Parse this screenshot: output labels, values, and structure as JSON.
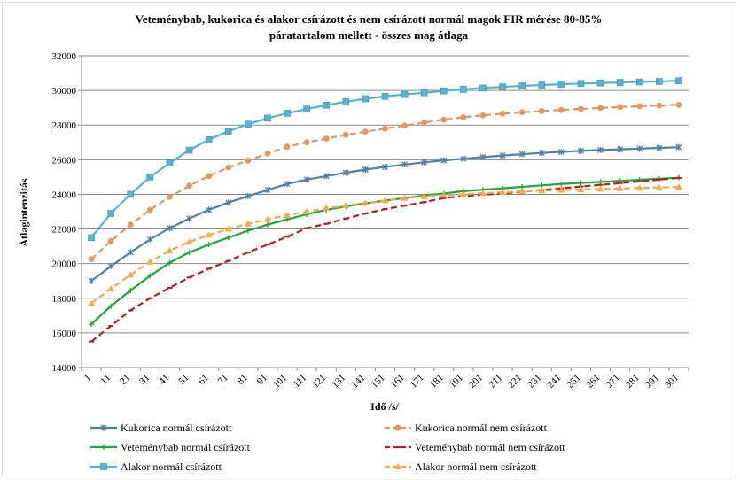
{
  "chart_data": {
    "type": "line",
    "title_line1": "Veteménybab,  kukorica és alakor csírázott és nem csírázott normál magok FIR mérése 80-85%",
    "title_line2": "páratartalom mellett - összes mag átlaga",
    "xlabel": "Idő /s/",
    "ylabel": "Átlagintenzitás",
    "ylim": [
      14000,
      32000
    ],
    "yticks": [
      14000,
      16000,
      18000,
      20000,
      22000,
      24000,
      26000,
      28000,
      30000,
      32000
    ],
    "x": [
      1,
      11,
      21,
      31,
      41,
      51,
      61,
      71,
      81,
      91,
      101,
      111,
      121,
      131,
      141,
      151,
      161,
      171,
      181,
      191,
      201,
      211,
      221,
      231,
      241,
      251,
      261,
      271,
      281,
      291,
      301
    ],
    "grid": "horizontal",
    "legend_position": "bottom",
    "series": [
      {
        "name": "Kukorica  normál csírázott",
        "color": "#4f81a6",
        "marker": "x",
        "dash": "solid",
        "values": [
          19000,
          19850,
          20650,
          21400,
          22050,
          22600,
          23100,
          23520,
          23900,
          24250,
          24600,
          24850,
          25050,
          25250,
          25430,
          25580,
          25720,
          25850,
          25960,
          26060,
          26150,
          26240,
          26320,
          26390,
          26450,
          26510,
          26560,
          26600,
          26640,
          26680,
          26720
        ]
      },
      {
        "name": "Kukorica normál nem csírázott",
        "color": "#e3975f",
        "marker": "circle",
        "dash": "dash",
        "values": [
          20250,
          21300,
          22250,
          23100,
          23850,
          24500,
          25050,
          25550,
          25950,
          26350,
          26750,
          27000,
          27220,
          27430,
          27620,
          27800,
          27970,
          28150,
          28310,
          28450,
          28560,
          28660,
          28740,
          28810,
          28870,
          28930,
          28990,
          29040,
          29090,
          29130,
          29170
        ]
      },
      {
        "name": "Veteménybab normál csírázott",
        "color": "#1fa83a",
        "marker": "plus",
        "dash": "solid",
        "values": [
          16500,
          17550,
          18450,
          19300,
          20050,
          20650,
          21100,
          21500,
          21900,
          22250,
          22550,
          22850,
          23100,
          23300,
          23480,
          23640,
          23790,
          23930,
          24050,
          24180,
          24270,
          24350,
          24430,
          24520,
          24600,
          24660,
          24720,
          24780,
          24840,
          24900,
          24960
        ]
      },
      {
        "name": "Veteménybab normál  nem csírázott",
        "color": "#b32222",
        "marker": "dash",
        "dash": "dash",
        "values": [
          15500,
          16400,
          17300,
          18000,
          18600,
          19200,
          19700,
          20150,
          20650,
          21100,
          21550,
          22050,
          22300,
          22600,
          22900,
          23150,
          23350,
          23550,
          23780,
          23900,
          23980,
          24050,
          24150,
          24250,
          24350,
          24450,
          24550,
          24650,
          24750,
          24850,
          24950
        ]
      },
      {
        "name": "Alakor normál csírázott",
        "color": "#55b4d4",
        "marker": "square",
        "dash": "solid",
        "values": [
          21500,
          22900,
          24000,
          25000,
          25800,
          26550,
          27150,
          27650,
          28050,
          28400,
          28680,
          28920,
          29150,
          29350,
          29520,
          29660,
          29770,
          29870,
          29970,
          30060,
          30140,
          30200,
          30260,
          30310,
          30360,
          30400,
          30430,
          30460,
          30490,
          30520,
          30560
        ]
      },
      {
        "name": "Alakor normál nem csírázott",
        "color": "#f4a94a",
        "marker": "triangle",
        "dash": "dash",
        "values": [
          17700,
          18550,
          19350,
          20100,
          20750,
          21250,
          21650,
          22000,
          22300,
          22550,
          22800,
          23000,
          23200,
          23350,
          23500,
          23650,
          23780,
          23880,
          23950,
          24000,
          24070,
          24120,
          24170,
          24210,
          24250,
          24280,
          24310,
          24340,
          24370,
          24400,
          24430
        ]
      }
    ]
  }
}
